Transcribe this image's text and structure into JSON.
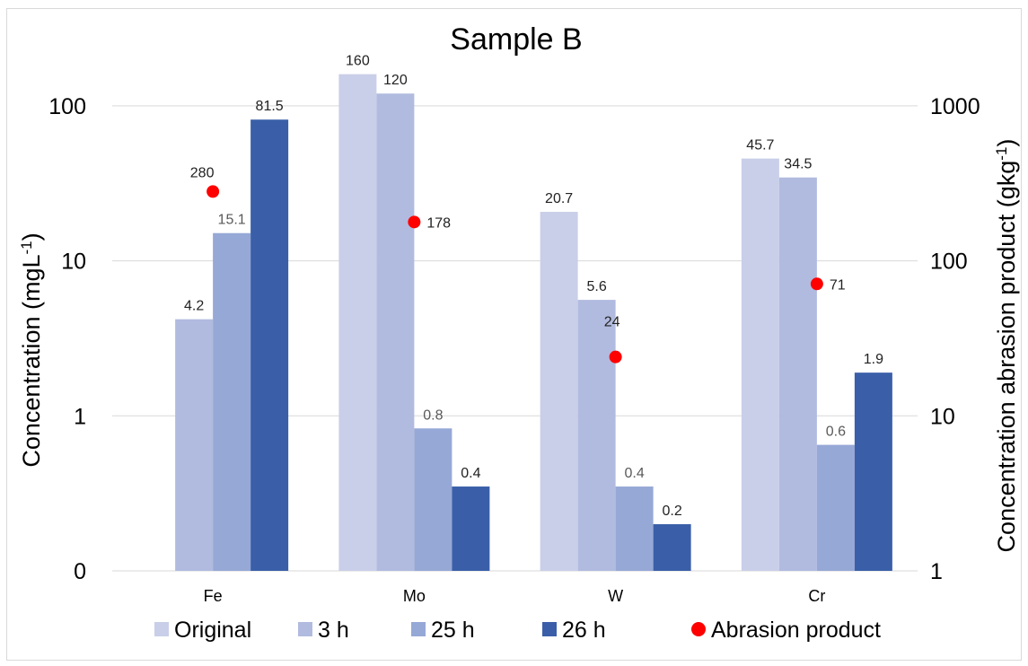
{
  "chart_data": {
    "type": "bar",
    "title": "Sample B",
    "categories": [
      "Fe",
      "Mo",
      "W",
      "Cr"
    ],
    "y_left": {
      "label_main": "Concentration (mgL",
      "label_sup": "-1",
      "label_end": ")",
      "scale": "log",
      "ylim": [
        0.1,
        100
      ],
      "tick_values": [
        0.1,
        1,
        10,
        100
      ],
      "tick_labels": [
        "0",
        "1",
        "10",
        "100"
      ]
    },
    "y_right": {
      "label_main": "Concentration abrasion product (gkg",
      "label_sup": "-1",
      "label_end": ")",
      "scale": "log",
      "ylim": [
        1,
        1000
      ],
      "tick_values": [
        1,
        10,
        100,
        1000
      ],
      "tick_labels": [
        "1",
        "10",
        "100",
        "1000"
      ]
    },
    "series": [
      {
        "name": "Original",
        "color": "#c9cfe8",
        "label_color": "#222222",
        "values": [
          null,
          160,
          20.7,
          45.7
        ],
        "labels": [
          "",
          "160",
          "20.7",
          "45.7"
        ]
      },
      {
        "name": "3 h",
        "color": "#b1bbdf",
        "label_color": "#222222",
        "values": [
          4.2,
          120,
          5.6,
          34.5
        ],
        "labels": [
          "4.2",
          "120",
          "5.6",
          "34.5"
        ]
      },
      {
        "name": "25 h",
        "color": "#96a8d5",
        "label_color": "#595959",
        "values": [
          15.1,
          0.83,
          0.35,
          0.65
        ],
        "labels": [
          "15.1",
          "0.8",
          "0.4",
          "0.6"
        ]
      },
      {
        "name": "26 h",
        "color": "#3a5fa8",
        "label_color": "#222222",
        "values": [
          81.5,
          0.35,
          0.2,
          1.9
        ],
        "labels": [
          "81.5",
          "0.4",
          "0.2",
          "1.9"
        ]
      }
    ],
    "abrasion": {
      "name": "Abrasion product",
      "color": "#ff0000",
      "axis": "right",
      "values": [
        280,
        178,
        24,
        71
      ],
      "labels": [
        "280",
        "178",
        "24",
        "71"
      ]
    },
    "grid": true,
    "legend": "bottom"
  }
}
